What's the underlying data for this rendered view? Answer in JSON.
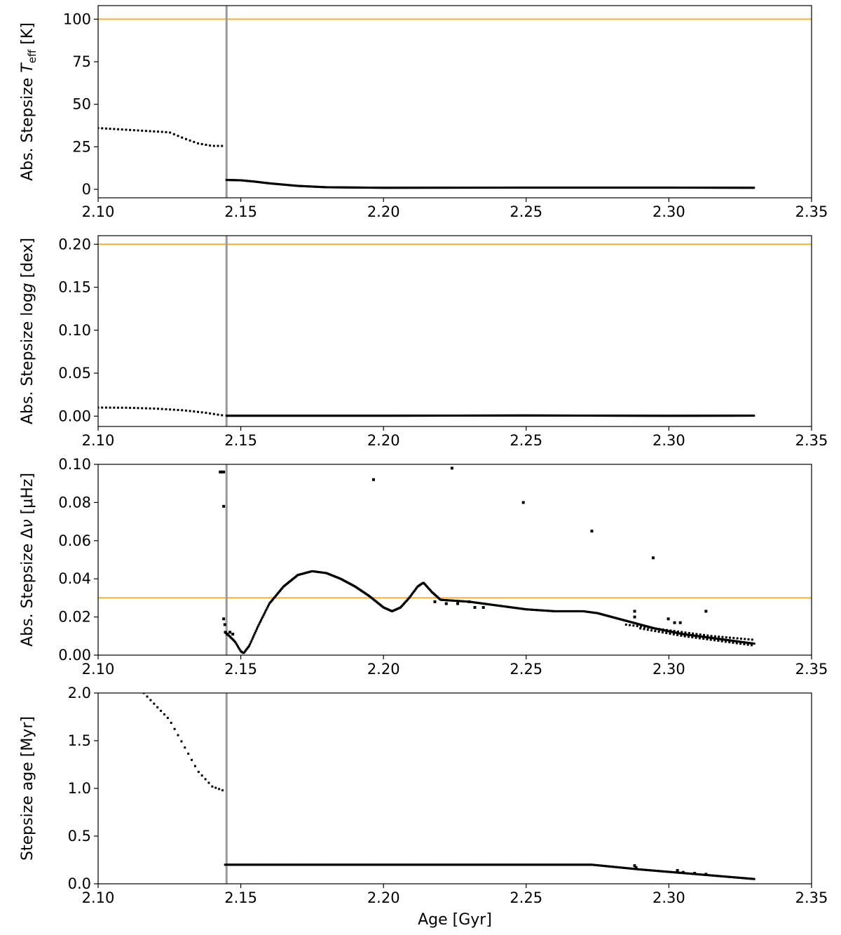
{
  "chart_data": [
    {
      "type": "scatter",
      "ylabel_parts": [
        "Abs. Stepsize ",
        "T",
        "eff",
        " [K]"
      ],
      "xlim": [
        2.1,
        2.35
      ],
      "ylim": [
        -5,
        108
      ],
      "xticks": [
        2.1,
        2.15,
        2.2,
        2.25,
        2.3,
        2.35
      ],
      "xtick_labels": [
        "2.10",
        "2.15",
        "2.20",
        "2.25",
        "2.30",
        "2.35"
      ],
      "yticks": [
        0,
        25,
        50,
        75,
        100
      ],
      "ytick_labels": [
        "0",
        "25",
        "50",
        "75",
        "100"
      ],
      "threshold": {
        "y": 100,
        "color": "#f5b12a"
      },
      "marker": {
        "x": 2.145,
        "color": "#9a9a9a"
      },
      "segments": [
        {
          "x": [
            2.1,
            2.11,
            2.12,
            2.125,
            2.13,
            2.135,
            2.14,
            2.1445
          ],
          "y": [
            36,
            35,
            34,
            33.5,
            30,
            27,
            25.5,
            25.5
          ],
          "step": 0.0014
        },
        {
          "x": [
            2.145,
            2.15,
            2.155,
            2.16,
            2.17,
            2.18,
            2.2,
            2.25,
            2.3,
            2.33
          ],
          "y": [
            5.5,
            5.3,
            4.5,
            3.5,
            2.0,
            1.2,
            0.9,
            1.0,
            1.0,
            0.9
          ],
          "step": 0.0003
        }
      ],
      "outliers": []
    },
    {
      "type": "scatter",
      "ylabel_parts": [
        "Abs. Stepsize log",
        "g",
        "",
        " [dex]"
      ],
      "xlim": [
        2.1,
        2.35
      ],
      "ylim": [
        -0.012,
        0.21
      ],
      "xticks": [
        2.1,
        2.15,
        2.2,
        2.25,
        2.3,
        2.35
      ],
      "xtick_labels": [
        "2.10",
        "2.15",
        "2.20",
        "2.25",
        "2.30",
        "2.35"
      ],
      "yticks": [
        0.0,
        0.05,
        0.1,
        0.15,
        0.2
      ],
      "ytick_labels": [
        "0.00",
        "0.05",
        "0.10",
        "0.15",
        "0.20"
      ],
      "threshold": {
        "y": 0.2,
        "color": "#f5b12a"
      },
      "marker": {
        "x": 2.145,
        "color": "#9a9a9a"
      },
      "segments": [
        {
          "x": [
            2.1,
            2.11,
            2.12,
            2.13,
            2.138,
            2.1445
          ],
          "y": [
            0.01,
            0.0098,
            0.0088,
            0.0068,
            0.0038,
            0.0005
          ],
          "step": 0.0014
        },
        {
          "x": [
            2.145,
            2.2,
            2.25,
            2.3,
            2.33
          ],
          "y": [
            0.0005,
            0.0005,
            0.0008,
            0.0004,
            0.0006
          ],
          "step": 0.0003
        }
      ],
      "outliers": []
    },
    {
      "type": "scatter",
      "ylabel_parts": [
        "Abs. Stepsize Δ",
        "ν",
        "",
        " [μHz]"
      ],
      "xlim": [
        2.1,
        2.35
      ],
      "ylim": [
        0.0,
        0.1
      ],
      "xticks": [
        2.1,
        2.15,
        2.2,
        2.25,
        2.3,
        2.35
      ],
      "xtick_labels": [
        "2.10",
        "2.15",
        "2.20",
        "2.25",
        "2.30",
        "2.35"
      ],
      "yticks": [
        0.0,
        0.02,
        0.04,
        0.06,
        0.08,
        0.1
      ],
      "ytick_labels": [
        "0.00",
        "0.02",
        "0.04",
        "0.06",
        "0.08",
        "0.10"
      ],
      "threshold": {
        "y": 0.03,
        "color": "#f5b12a"
      },
      "marker": {
        "x": 2.145,
        "color": "#9a9a9a"
      },
      "segments": [
        {
          "x": [
            2.1445,
            2.146,
            2.148,
            2.15,
            2.151,
            2.153,
            2.156,
            2.16,
            2.165,
            2.17,
            2.175,
            2.18,
            2.185,
            2.19,
            2.195,
            2.2,
            2.203,
            2.206,
            2.209,
            2.212,
            2.214,
            2.217,
            2.22,
            2.23,
            2.24,
            2.25,
            2.26,
            2.27,
            2.275,
            2.285,
            2.295,
            2.305,
            2.32,
            2.33
          ],
          "y": [
            0.012,
            0.01,
            0.007,
            0.002,
            0.001,
            0.005,
            0.015,
            0.027,
            0.036,
            0.042,
            0.044,
            0.043,
            0.04,
            0.036,
            0.031,
            0.025,
            0.023,
            0.025,
            0.03,
            0.036,
            0.038,
            0.033,
            0.029,
            0.028,
            0.026,
            0.024,
            0.023,
            0.023,
            0.022,
            0.018,
            0.014,
            0.011,
            0.008,
            0.006
          ],
          "step": 0.0003
        },
        {
          "x": [
            2.285,
            2.3,
            2.315,
            2.33
          ],
          "y": [
            0.016,
            0.013,
            0.01,
            0.008
          ],
          "step": 0.0013
        },
        {
          "x": [
            2.29,
            2.305,
            2.32,
            2.33
          ],
          "y": [
            0.014,
            0.01,
            0.007,
            0.005
          ],
          "step": 0.0013
        }
      ],
      "outliers": [
        {
          "x": 2.1428,
          "y": 0.096
        },
        {
          "x": 2.1434,
          "y": 0.096
        },
        {
          "x": 2.144,
          "y": 0.096
        },
        {
          "x": 2.144,
          "y": 0.078
        },
        {
          "x": 2.144,
          "y": 0.019
        },
        {
          "x": 2.1444,
          "y": 0.016
        },
        {
          "x": 2.1446,
          "y": 0.012
        },
        {
          "x": 2.1452,
          "y": 0.011
        },
        {
          "x": 2.1462,
          "y": 0.012
        },
        {
          "x": 2.1472,
          "y": 0.011
        },
        {
          "x": 2.1965,
          "y": 0.092
        },
        {
          "x": 2.224,
          "y": 0.098
        },
        {
          "x": 2.249,
          "y": 0.08
        },
        {
          "x": 2.273,
          "y": 0.065
        },
        {
          "x": 2.2945,
          "y": 0.051
        },
        {
          "x": 2.288,
          "y": 0.023
        },
        {
          "x": 2.288,
          "y": 0.02
        },
        {
          "x": 2.2998,
          "y": 0.019
        },
        {
          "x": 2.302,
          "y": 0.017
        },
        {
          "x": 2.304,
          "y": 0.017
        },
        {
          "x": 2.313,
          "y": 0.023
        },
        {
          "x": 2.218,
          "y": 0.028
        },
        {
          "x": 2.222,
          "y": 0.027
        },
        {
          "x": 2.226,
          "y": 0.027
        },
        {
          "x": 2.23,
          "y": 0.028
        },
        {
          "x": 2.232,
          "y": 0.025
        },
        {
          "x": 2.235,
          "y": 0.025
        }
      ]
    },
    {
      "type": "scatter",
      "ylabel_parts": [
        "Stepsize age [Myr]",
        "",
        "",
        ""
      ],
      "xlabel": "Age [Gyr]",
      "xlim": [
        2.1,
        2.35
      ],
      "ylim": [
        0.0,
        2.0
      ],
      "xticks": [
        2.1,
        2.15,
        2.2,
        2.25,
        2.3,
        2.35
      ],
      "xtick_labels": [
        "2.10",
        "2.15",
        "2.20",
        "2.25",
        "2.30",
        "2.35"
      ],
      "yticks": [
        0.0,
        0.5,
        1.0,
        1.5,
        2.0
      ],
      "ytick_labels": [
        "0.0",
        "0.5",
        "1.0",
        "1.5",
        "2.0"
      ],
      "threshold": null,
      "marker": {
        "x": 2.145,
        "color": "#9a9a9a"
      },
      "segments": [
        {
          "x": [
            2.116,
            2.125,
            2.13,
            2.135,
            2.14,
            2.1445
          ],
          "y": [
            2.0,
            1.72,
            1.45,
            1.18,
            1.02,
            0.97
          ],
          "step": 0.0012
        },
        {
          "x": [
            2.1445,
            2.2,
            2.25,
            2.273,
            2.29,
            2.31,
            2.33
          ],
          "y": [
            0.2,
            0.2,
            0.2,
            0.2,
            0.15,
            0.1,
            0.05
          ],
          "step": 0.0003
        }
      ],
      "outliers": [
        {
          "x": 2.288,
          "y": 0.19
        },
        {
          "x": 2.2885,
          "y": 0.17
        },
        {
          "x": 2.303,
          "y": 0.14
        },
        {
          "x": 2.305,
          "y": 0.12
        },
        {
          "x": 2.309,
          "y": 0.11
        },
        {
          "x": 2.313,
          "y": 0.1
        }
      ]
    }
  ]
}
